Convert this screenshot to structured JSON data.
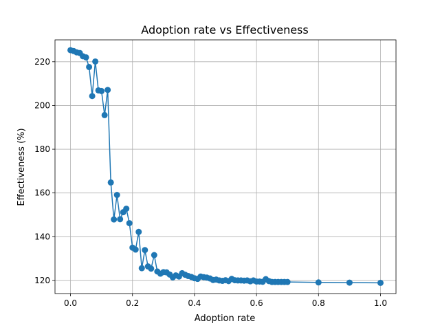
{
  "chart_data": {
    "type": "line",
    "title": "Adoption rate vs Effectiveness",
    "xlabel": "Adoption rate",
    "ylabel": "Effectiveness (%)",
    "xlim": [
      -0.05,
      1.05
    ],
    "ylim": [
      114,
      230
    ],
    "grid": true,
    "marker": "circle",
    "color": "#1f77b4",
    "xticks": [
      0.0,
      0.2,
      0.4,
      0.6,
      0.8,
      1.0
    ],
    "xtick_labels": [
      "0.0",
      "0.2",
      "0.4",
      "0.6",
      "0.8",
      "1.0"
    ],
    "yticks": [
      120,
      140,
      160,
      180,
      200,
      220
    ],
    "ytick_labels": [
      "120",
      "140",
      "160",
      "180",
      "200",
      "220"
    ],
    "series": [
      {
        "x": [
          0.0,
          0.01,
          0.02,
          0.03,
          0.04,
          0.05,
          0.06,
          0.07,
          0.08,
          0.09,
          0.1,
          0.11,
          0.12,
          0.13,
          0.14,
          0.15,
          0.16,
          0.17,
          0.18,
          0.19,
          0.2,
          0.21,
          0.22,
          0.23,
          0.24,
          0.25,
          0.26,
          0.27,
          0.28,
          0.29,
          0.3,
          0.31,
          0.32,
          0.33,
          0.34,
          0.35,
          0.36,
          0.37,
          0.38,
          0.39,
          0.4,
          0.41,
          0.42,
          0.43,
          0.44,
          0.45,
          0.46,
          0.47,
          0.48,
          0.49,
          0.5,
          0.51,
          0.52,
          0.53,
          0.54,
          0.55,
          0.56,
          0.57,
          0.58,
          0.59,
          0.6,
          0.61,
          0.62,
          0.63,
          0.64,
          0.65,
          0.66,
          0.67,
          0.68,
          0.69,
          0.7,
          0.8,
          0.9,
          1.0
        ],
        "y": [
          225.3,
          224.9,
          224.3,
          224.0,
          222.5,
          222.0,
          217.6,
          204.3,
          220.1,
          206.9,
          206.6,
          195.6,
          207.1,
          164.8,
          147.9,
          159.1,
          148.0,
          151.2,
          152.8,
          146.2,
          135.0,
          134.1,
          142.2,
          125.6,
          133.9,
          126.4,
          125.4,
          131.6,
          124.1,
          123.1,
          123.8,
          123.7,
          122.7,
          121.4,
          122.3,
          121.8,
          123.3,
          122.6,
          122.0,
          121.6,
          121.0,
          120.7,
          121.8,
          121.5,
          121.3,
          120.9,
          120.2,
          120.4,
          120.0,
          119.8,
          120.1,
          119.7,
          120.7,
          120.1,
          120.0,
          120.0,
          119.9,
          120.0,
          119.6,
          120.0,
          119.5,
          119.5,
          119.4,
          120.6,
          119.7,
          119.3,
          119.3,
          119.3,
          119.3,
          119.3,
          119.3,
          119.1,
          119.0,
          118.9
        ]
      }
    ]
  }
}
